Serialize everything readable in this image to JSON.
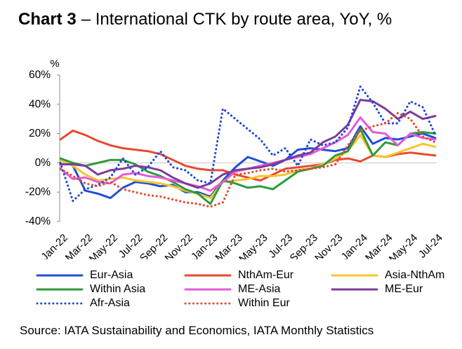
{
  "source": "Source: IATA Sustainability and Economics, IATA Monthly Statistics",
  "chart_data": {
    "type": "line",
    "title": {
      "label": "Chart 3",
      "text": "– International CTK by route area, YoY, %"
    },
    "ylabel": "%",
    "ylim": [
      -40,
      60
    ],
    "yticks": [
      60,
      40,
      20,
      0,
      -20,
      -40
    ],
    "ytick_labels": [
      "60%",
      "40%",
      "20%",
      "0%",
      "-20%",
      "-40%"
    ],
    "grid": false,
    "legend": "bottom",
    "x": [
      "Jan-22",
      "Feb-22",
      "Mar-22",
      "Apr-22",
      "May-22",
      "Jun-22",
      "Jul-22",
      "Aug-22",
      "Sep-22",
      "Oct-22",
      "Nov-22",
      "Dec-22",
      "Jan-23",
      "Feb-23",
      "Mar-23",
      "Apr-23",
      "May-23",
      "Jun-23",
      "Jul-23",
      "Aug-23",
      "Sep-23",
      "Oct-23",
      "Nov-23",
      "Dec-23",
      "Jan-24",
      "Feb-24",
      "Mar-24",
      "Apr-24",
      "May-24",
      "Jun-24",
      "Jul-24"
    ],
    "series": [
      {
        "name": "Eur-Asia",
        "color": "#1f4ed8",
        "line_style": "solid",
        "values": [
          2,
          -2,
          -19,
          -21,
          -24,
          -17,
          -13,
          -14,
          -16,
          -15,
          -20,
          -20,
          -23,
          -12,
          -3,
          4,
          1,
          -2,
          2,
          9,
          10,
          9,
          8,
          10,
          25,
          13,
          17,
          16,
          18,
          20,
          17
        ]
      },
      {
        "name": "NthAm-Eur",
        "color": "#e84a2f",
        "line_style": "solid",
        "values": [
          16,
          22,
          19,
          15,
          12,
          10,
          9,
          8,
          6,
          2,
          -2,
          -4,
          -5,
          -5,
          -8,
          -10,
          -12,
          -8,
          -4,
          -3,
          -2,
          -1,
          2,
          3,
          1,
          5,
          4,
          6,
          7,
          6,
          5
        ]
      },
      {
        "name": "Asia-NthAm",
        "color": "#f7c52a",
        "line_style": "solid",
        "values": [
          2,
          -2,
          -8,
          -12,
          -11,
          -10,
          -12,
          -13,
          -14,
          -16,
          -19,
          -21,
          -24,
          -13,
          -12,
          -11,
          -9,
          -9,
          -8,
          -5,
          -4,
          -1,
          3,
          8,
          19,
          5,
          4,
          7,
          10,
          13,
          11
        ]
      },
      {
        "name": "Within Asia",
        "color": "#2f9a3b",
        "line_style": "solid",
        "values": [
          3,
          0,
          -2,
          0,
          2,
          2,
          -1,
          -6,
          -9,
          -13,
          -18,
          -21,
          -28,
          -12,
          -14,
          -17,
          -16,
          -18,
          -12,
          -6,
          -4,
          -2,
          5,
          8,
          23,
          5,
          14,
          12,
          20,
          21,
          20
        ]
      },
      {
        "name": "ME-Asia",
        "color": "#e65ad8",
        "line_style": "solid",
        "values": [
          -4,
          -11,
          -10,
          -13,
          -14,
          -8,
          -7,
          -9,
          -10,
          -12,
          -14,
          -16,
          -19,
          -13,
          -6,
          -4,
          -2,
          0,
          2,
          4,
          6,
          10,
          14,
          19,
          31,
          21,
          20,
          12,
          20,
          17,
          16
        ]
      },
      {
        "name": "ME-Eur",
        "color": "#7b3d99",
        "line_style": "solid",
        "values": [
          -1,
          -1,
          -2,
          -8,
          -5,
          -4,
          -2,
          -3,
          -5,
          -10,
          -14,
          -17,
          -14,
          -8,
          -5,
          -4,
          -3,
          -1,
          2,
          5,
          7,
          14,
          18,
          26,
          43,
          42,
          37,
          30,
          35,
          30,
          32
        ]
      },
      {
        "name": "Afr-Asia",
        "color": "#2448d8",
        "line_style": "dotted",
        "values": [
          0,
          -26,
          -18,
          -15,
          -10,
          3,
          -8,
          -3,
          8,
          -3,
          -5,
          -12,
          -14,
          37,
          30,
          23,
          16,
          5,
          10,
          -2,
          16,
          12,
          14,
          24,
          52,
          41,
          27,
          27,
          42,
          38,
          19
        ]
      },
      {
        "name": "Within Eur",
        "color": "#e84a2f",
        "line_style": "dotted",
        "values": [
          -4,
          -9,
          -14,
          -16,
          -13,
          -18,
          -20,
          -22,
          -23,
          -25,
          -27,
          -28,
          -30,
          -27,
          -8,
          -7,
          -5,
          -4,
          -6,
          -5,
          -4,
          -3,
          -1,
          12,
          22,
          25,
          27,
          34,
          30,
          18,
          14
        ]
      }
    ]
  }
}
